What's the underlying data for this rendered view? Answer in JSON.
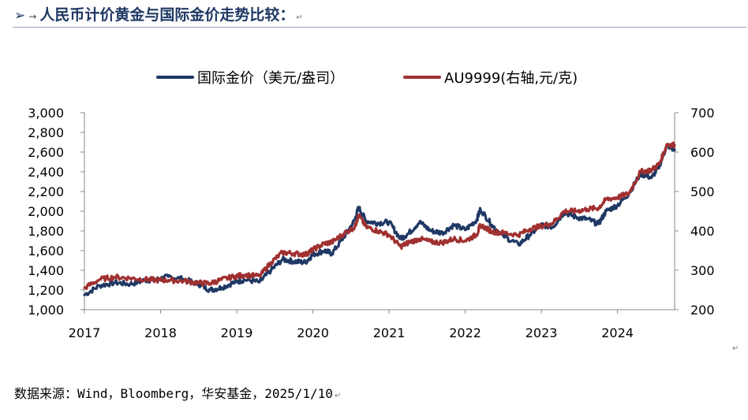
{
  "heading": {
    "arrow": "➢",
    "small_arrow": "→",
    "title": "人民币计价黄金与国际金价走势比较：",
    "para_mark": "↵"
  },
  "chart_data": {
    "type": "line",
    "title": "人民币计价黄金与国际金价走势比较",
    "x_ticks": [
      "2017",
      "2018",
      "2019",
      "2020",
      "2021",
      "2022",
      "2023",
      "2024"
    ],
    "xlim": [
      2017.0,
      2024.75
    ],
    "y_left": {
      "ticks": [
        "1,000",
        "1,200",
        "1,400",
        "1,600",
        "1,800",
        "2,000",
        "2,200",
        "2,400",
        "2,600",
        "2,800",
        "3,000"
      ],
      "ylim": [
        1000,
        3000
      ]
    },
    "y_right": {
      "ticks": [
        "200",
        "300",
        "400",
        "500",
        "600",
        "700"
      ],
      "ylim": [
        200,
        700
      ]
    },
    "legend_position": "top-center",
    "series": [
      {
        "name": "国际金价（美元/盎司）",
        "axis": "left",
        "color": "#1f3864",
        "points": [
          [
            2017.0,
            1150
          ],
          [
            2017.2,
            1245
          ],
          [
            2017.4,
            1275
          ],
          [
            2017.6,
            1260
          ],
          [
            2017.8,
            1300
          ],
          [
            2017.95,
            1305
          ],
          [
            2018.1,
            1335
          ],
          [
            2018.3,
            1310
          ],
          [
            2018.5,
            1260
          ],
          [
            2018.65,
            1200
          ],
          [
            2018.8,
            1225
          ],
          [
            2018.98,
            1280
          ],
          [
            2019.1,
            1305
          ],
          [
            2019.3,
            1280
          ],
          [
            2019.45,
            1400
          ],
          [
            2019.6,
            1510
          ],
          [
            2019.75,
            1490
          ],
          [
            2019.9,
            1480
          ],
          [
            2020.0,
            1560
          ],
          [
            2020.15,
            1600
          ],
          [
            2020.25,
            1570
          ],
          [
            2020.4,
            1730
          ],
          [
            2020.55,
            1910
          ],
          [
            2020.6,
            2040
          ],
          [
            2020.7,
            1900
          ],
          [
            2020.85,
            1880
          ],
          [
            2021.0,
            1890
          ],
          [
            2021.15,
            1720
          ],
          [
            2021.25,
            1770
          ],
          [
            2021.4,
            1890
          ],
          [
            2021.55,
            1800
          ],
          [
            2021.7,
            1780
          ],
          [
            2021.85,
            1860
          ],
          [
            2022.0,
            1810
          ],
          [
            2022.15,
            1910
          ],
          [
            2022.2,
            2020
          ],
          [
            2022.35,
            1860
          ],
          [
            2022.5,
            1750
          ],
          [
            2022.7,
            1660
          ],
          [
            2022.85,
            1760
          ],
          [
            2023.0,
            1860
          ],
          [
            2023.15,
            1840
          ],
          [
            2023.3,
            1990
          ],
          [
            2023.45,
            1940
          ],
          [
            2023.6,
            1920
          ],
          [
            2023.75,
            1870
          ],
          [
            2023.85,
            2000
          ],
          [
            2024.0,
            2060
          ],
          [
            2024.15,
            2180
          ],
          [
            2024.3,
            2380
          ],
          [
            2024.45,
            2340
          ],
          [
            2024.55,
            2460
          ],
          [
            2024.65,
            2670
          ],
          [
            2024.75,
            2620
          ]
        ]
      },
      {
        "name": "AU9999(右轴,元/克)",
        "axis": "right",
        "color": "#a03030",
        "points": [
          [
            2017.0,
            255
          ],
          [
            2017.2,
            277
          ],
          [
            2017.4,
            283
          ],
          [
            2017.6,
            280
          ],
          [
            2017.8,
            277
          ],
          [
            2017.95,
            275
          ],
          [
            2018.1,
            275
          ],
          [
            2018.3,
            273
          ],
          [
            2018.5,
            268
          ],
          [
            2018.65,
            267
          ],
          [
            2018.8,
            276
          ],
          [
            2018.98,
            285
          ],
          [
            2019.1,
            288
          ],
          [
            2019.3,
            285
          ],
          [
            2019.45,
            320
          ],
          [
            2019.6,
            345
          ],
          [
            2019.75,
            343
          ],
          [
            2019.9,
            340
          ],
          [
            2020.0,
            352
          ],
          [
            2020.15,
            368
          ],
          [
            2020.25,
            371
          ],
          [
            2020.4,
            392
          ],
          [
            2020.55,
            410
          ],
          [
            2020.6,
            440
          ],
          [
            2020.7,
            410
          ],
          [
            2020.85,
            400
          ],
          [
            2021.0,
            390
          ],
          [
            2021.15,
            360
          ],
          [
            2021.25,
            370
          ],
          [
            2021.4,
            380
          ],
          [
            2021.55,
            372
          ],
          [
            2021.7,
            370
          ],
          [
            2021.85,
            380
          ],
          [
            2022.0,
            375
          ],
          [
            2022.15,
            390
          ],
          [
            2022.2,
            415
          ],
          [
            2022.35,
            398
          ],
          [
            2022.5,
            395
          ],
          [
            2022.7,
            390
          ],
          [
            2022.85,
            405
          ],
          [
            2023.0,
            412
          ],
          [
            2023.15,
            420
          ],
          [
            2023.3,
            450
          ],
          [
            2023.45,
            450
          ],
          [
            2023.6,
            455
          ],
          [
            2023.75,
            458
          ],
          [
            2023.85,
            480
          ],
          [
            2024.0,
            485
          ],
          [
            2024.15,
            495
          ],
          [
            2024.3,
            550
          ],
          [
            2024.45,
            555
          ],
          [
            2024.55,
            570
          ],
          [
            2024.65,
            620
          ],
          [
            2024.75,
            618
          ]
        ]
      }
    ]
  },
  "source": {
    "text": "数据来源：Wind，Bloomberg，华安基金，2025/1/10",
    "para_mark": "↵"
  },
  "end_mark": "↵"
}
